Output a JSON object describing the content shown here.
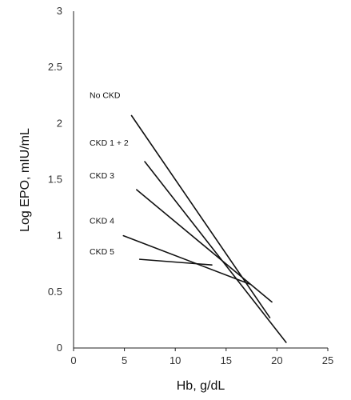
{
  "chart_data": {
    "type": "line",
    "title": "",
    "xlabel": "Hb, g/dL",
    "ylabel": "Log EPO, mIU/mL",
    "xlim": [
      0,
      25
    ],
    "ylim": [
      0,
      3
    ],
    "x_ticks": [
      "0",
      "5",
      "10",
      "15",
      "20",
      "25"
    ],
    "y_ticks": [
      "0",
      "0.5",
      "1",
      "1.5",
      "2",
      "2.5",
      "3"
    ],
    "grid": false,
    "legend": "inline labels left of lines",
    "line_color": "#111111",
    "series": [
      {
        "name": "No CKD",
        "x": [
          5.7,
          19.3
        ],
        "y": [
          2.07,
          0.27
        ]
      },
      {
        "name": "CKD 1 + 2",
        "x": [
          7.0,
          20.9
        ],
        "y": [
          1.66,
          0.05
        ]
      },
      {
        "name": "CKD 3",
        "x": [
          6.2,
          19.5
        ],
        "y": [
          1.41,
          0.41
        ]
      },
      {
        "name": "CKD 4",
        "x": [
          4.9,
          17.3
        ],
        "y": [
          1.0,
          0.57
        ]
      },
      {
        "name": "CKD 5",
        "x": [
          6.5,
          13.6
        ],
        "y": [
          0.79,
          0.74
        ]
      }
    ]
  }
}
